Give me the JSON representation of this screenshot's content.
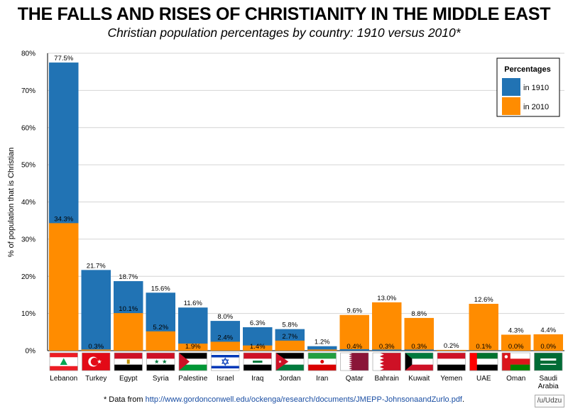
{
  "title": "THE FALLS AND RISES OF CHRISTIANITY IN THE MIDDLE EAST",
  "subtitle": "Christian population percentages by country: 1910 versus 2010*",
  "footnote": {
    "prefix": "* Data from ",
    "url": "http://www.gordonconwell.edu/ockenga/research/documents/JMEPP-JohnsonaandZurlo.pdf",
    "suffix": "."
  },
  "credit": "/u/Udzu",
  "colors": {
    "y1910": "#2173b4",
    "y2010": "#ff8c00",
    "grid": "#d4d4d4",
    "axis": "#000000"
  },
  "chart_data": {
    "type": "bar",
    "title": "THE FALLS AND RISES OF CHRISTIANITY IN THE MIDDLE EAST",
    "subtitle": "Christian population percentages by country: 1910 versus 2010*",
    "xlabel": "",
    "ylabel": "% of population that is Christian",
    "ylim": [
      0,
      80
    ],
    "yticks": [
      0,
      10,
      20,
      30,
      40,
      50,
      60,
      70,
      80
    ],
    "ytick_labels": [
      "0%",
      "10%",
      "20%",
      "30%",
      "40%",
      "50%",
      "60%",
      "70%",
      "80%"
    ],
    "grid": true,
    "legend": {
      "title": "Percentages",
      "placement": "top-right",
      "entries": [
        "in 1910",
        "in 2010"
      ]
    },
    "categories": [
      "Lebanon",
      "Turkey",
      "Egypt",
      "Syria",
      "Palestine",
      "Israel",
      "Iraq",
      "Jordan",
      "Iran",
      "Qatar",
      "Bahrain",
      "Kuwait",
      "Yemen",
      "UAE",
      "Oman",
      "Saudi Arabia"
    ],
    "category_labels": [
      [
        "Lebanon"
      ],
      [
        "Turkey"
      ],
      [
        "Egypt"
      ],
      [
        "Syria"
      ],
      [
        "Palestine"
      ],
      [
        "Israel"
      ],
      [
        "Iraq"
      ],
      [
        "Jordan"
      ],
      [
        "Iran"
      ],
      [
        "Qatar"
      ],
      [
        "Bahrain"
      ],
      [
        "Kuwait"
      ],
      [
        "Yemen"
      ],
      [
        "UAE"
      ],
      [
        "Oman"
      ],
      [
        "Saudi",
        "Arabia"
      ]
    ],
    "flag_icons": [
      "lebanon-flag-icon",
      "turkey-flag-icon",
      "egypt-flag-icon",
      "syria-flag-icon",
      "palestine-flag-icon",
      "israel-flag-icon",
      "iraq-flag-icon",
      "jordan-flag-icon",
      "iran-flag-icon",
      "qatar-flag-icon",
      "bahrain-flag-icon",
      "kuwait-flag-icon",
      "yemen-flag-icon",
      "uae-flag-icon",
      "oman-flag-icon",
      "saudi-arabia-flag-icon"
    ],
    "series": [
      {
        "name": "in 1910",
        "values": [
          77.5,
          21.7,
          18.7,
          15.6,
          11.6,
          8.0,
          6.3,
          5.8,
          1.2,
          0.4,
          0.3,
          0.3,
          0.2,
          0.1,
          0.0,
          0.0
        ]
      },
      {
        "name": "in 2010",
        "values": [
          34.3,
          0.3,
          10.1,
          5.2,
          1.9,
          2.4,
          1.4,
          2.7,
          0.3,
          9.6,
          13.0,
          8.8,
          0.2,
          12.6,
          4.3,
          4.4
        ]
      }
    ],
    "labels_1910": [
      "77.5%",
      "21.7%",
      "18.7%",
      "15.6%",
      "11.6%",
      "8.0%",
      "6.3%",
      "5.8%",
      "1.2%",
      "0.4%",
      "0.3%",
      "0.3%",
      "0.2%",
      "0.1%",
      "0.0%",
      "0.0%"
    ],
    "labels_2010": [
      "34.3%",
      "0.3%",
      "10.1%",
      "5.2%",
      "1.9%",
      "2.4%",
      "1.4%",
      "2.7%",
      "",
      "9.6%",
      "13.0%",
      "8.8%",
      "",
      "12.6%",
      "4.3%",
      "4.4%"
    ]
  }
}
